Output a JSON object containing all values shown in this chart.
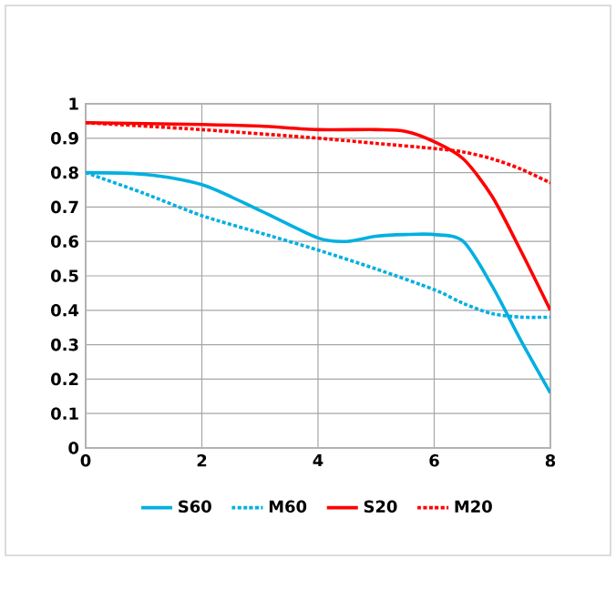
{
  "chart_data": {
    "type": "line",
    "xlim": [
      0,
      8
    ],
    "ylim": [
      0,
      1
    ],
    "xticks": [
      0,
      2,
      4,
      6,
      8
    ],
    "yticks": [
      0,
      0.1,
      0.2,
      0.3,
      0.4,
      0.5,
      0.6,
      0.7,
      0.8,
      0.9,
      1
    ],
    "grid": true,
    "legend": "bottom",
    "marker": "none",
    "series": [
      {
        "name": "S60",
        "color": "#00b0e0",
        "line_style": "solid",
        "x": [
          0,
          1,
          2,
          3,
          4,
          4.5,
          5,
          5.5,
          6,
          6.5,
          7,
          7.5,
          8
        ],
        "values": [
          0.8,
          0.795,
          0.765,
          0.69,
          0.61,
          0.6,
          0.615,
          0.62,
          0.62,
          0.6,
          0.47,
          0.31,
          0.16
        ]
      },
      {
        "name": "M60",
        "color": "#00b0e0",
        "line_style": "dotted",
        "x": [
          0,
          1,
          2,
          3,
          4,
          5,
          6,
          6.5,
          7,
          7.5,
          8
        ],
        "values": [
          0.8,
          0.74,
          0.675,
          0.625,
          0.575,
          0.52,
          0.46,
          0.42,
          0.39,
          0.38,
          0.38
        ]
      },
      {
        "name": "S20",
        "color": "#ff0000",
        "line_style": "solid",
        "x": [
          0,
          2,
          3,
          4,
          5,
          5.5,
          6,
          6.5,
          7,
          7.5,
          8
        ],
        "values": [
          0.945,
          0.94,
          0.935,
          0.925,
          0.925,
          0.92,
          0.89,
          0.84,
          0.73,
          0.57,
          0.4
        ]
      },
      {
        "name": "M20",
        "color": "#ff0000",
        "line_style": "dotted",
        "x": [
          0,
          2,
          4,
          5,
          6,
          6.5,
          7,
          7.5,
          8
        ],
        "values": [
          0.945,
          0.925,
          0.9,
          0.885,
          0.87,
          0.86,
          0.84,
          0.81,
          0.77
        ]
      }
    ]
  }
}
